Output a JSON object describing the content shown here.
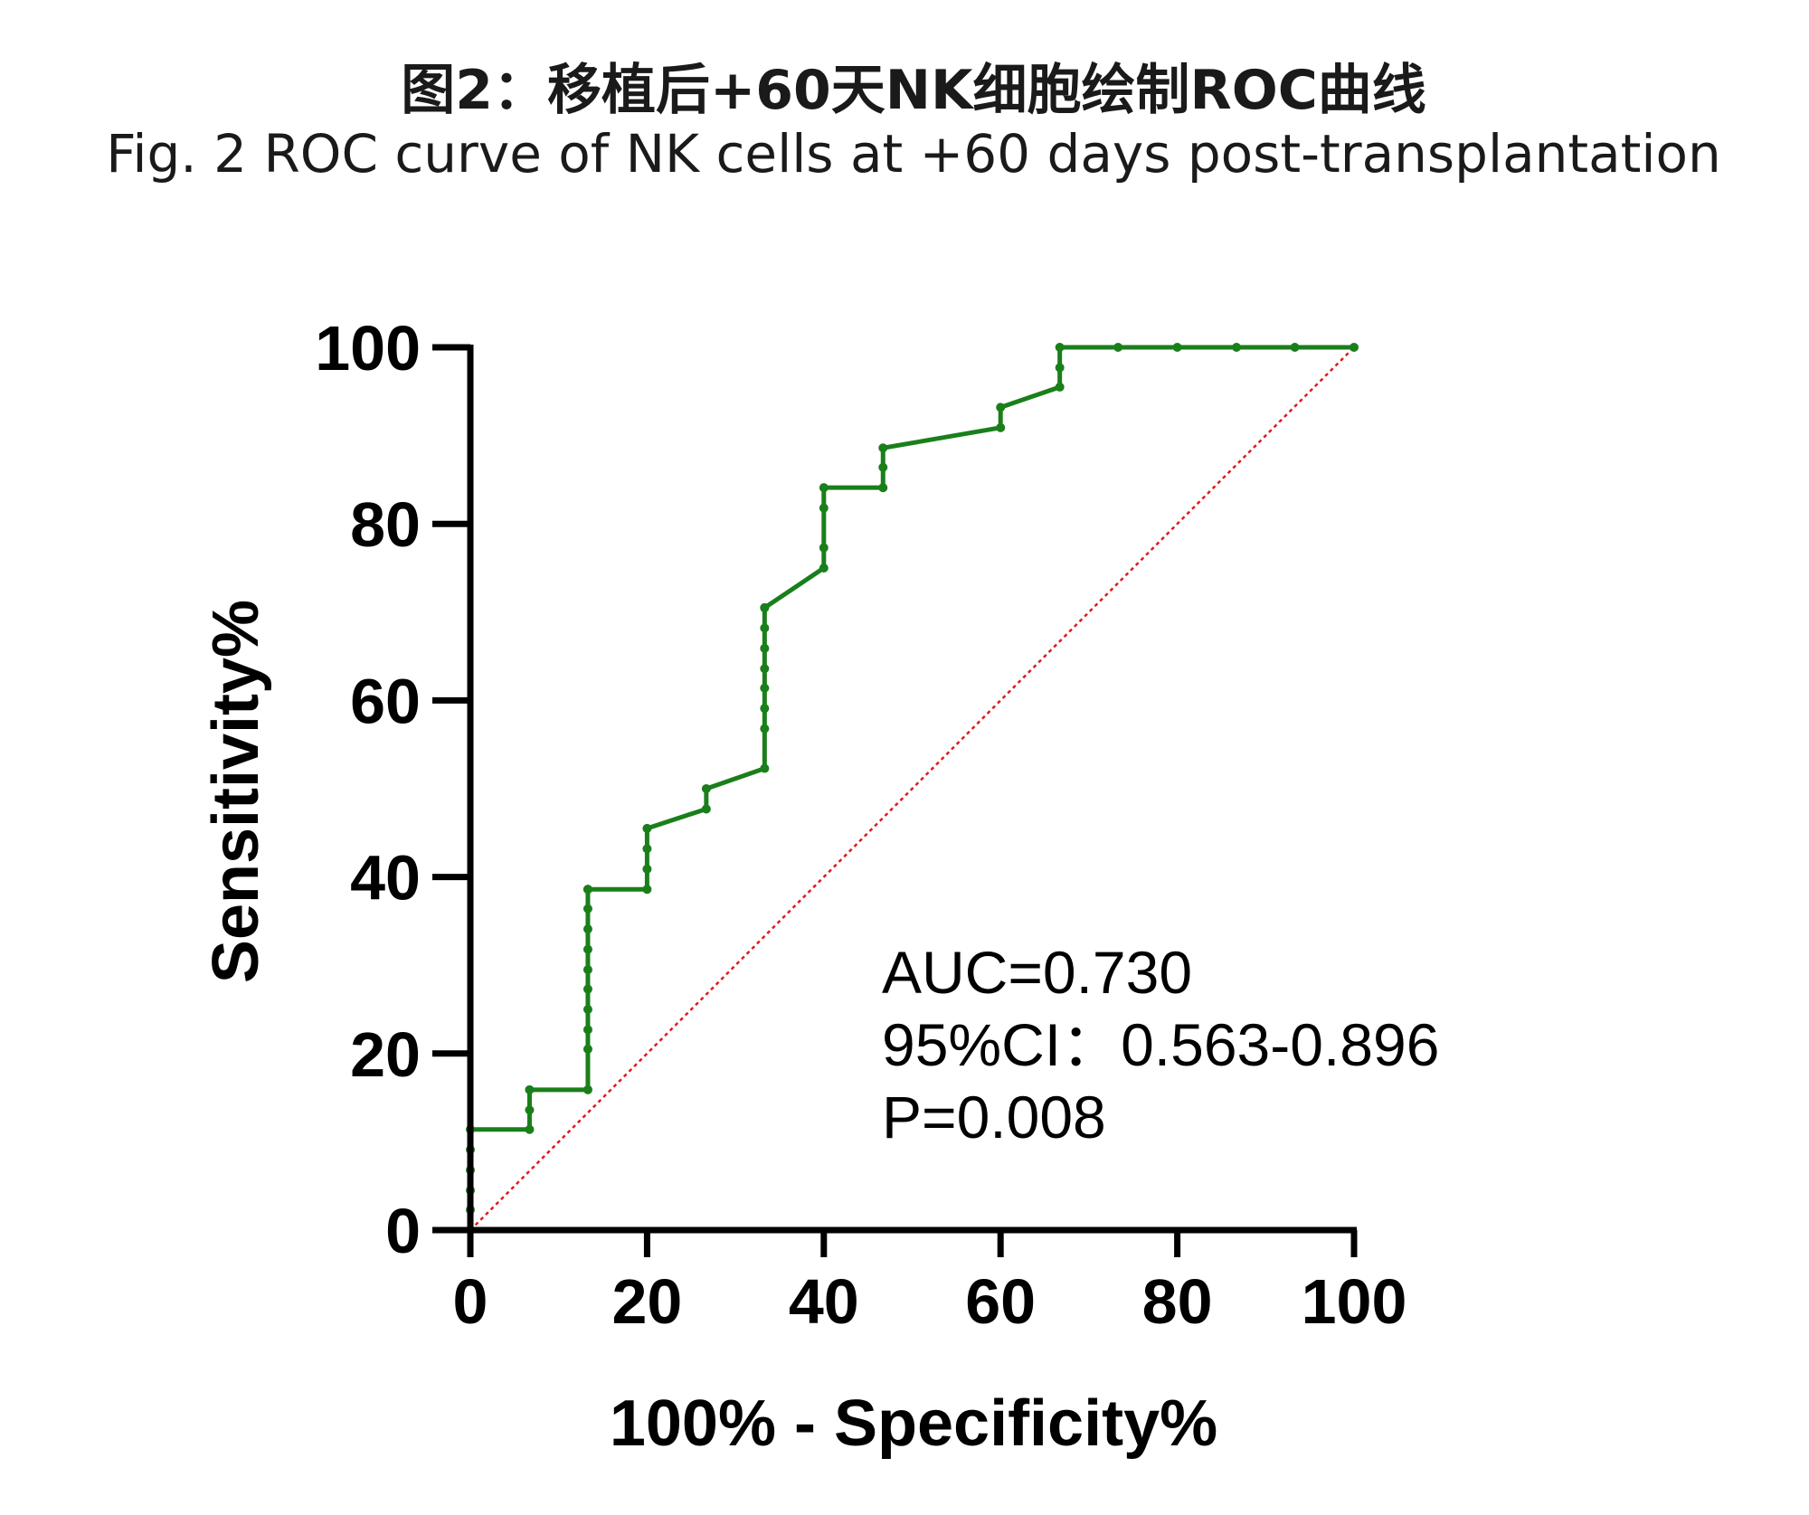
{
  "chart_data": {
    "type": "line",
    "title": "图2：移植后+60天NK细胞绘制ROC曲线",
    "subtitle": "Fig. 2 ROC curve of NK cells at +60 days post-transplantation",
    "xlabel": "100% - Specificity%",
    "ylabel": "Sensitivity%",
    "xlim": [
      0,
      100
    ],
    "ylim": [
      0,
      100
    ],
    "x_ticks": [
      "0",
      "20",
      "40",
      "60",
      "80",
      "100"
    ],
    "y_ticks": [
      "0",
      "20",
      "40",
      "60",
      "80",
      "100"
    ],
    "x_tick_values": [
      0,
      20,
      40,
      60,
      80,
      100
    ],
    "y_tick_values": [
      0,
      20,
      40,
      60,
      80,
      100
    ],
    "grid": false,
    "series": [
      {
        "style": "line-with-markers",
        "color": "#1a7f1a",
        "x": [
          0,
          0,
          0,
          0,
          0,
          0,
          6.7,
          6.7,
          6.7,
          13.3,
          13.3,
          13.3,
          13.3,
          13.3,
          13.3,
          13.3,
          13.3,
          13.3,
          13.3,
          13.3,
          13.3,
          20,
          20,
          20,
          20,
          26.7,
          26.7,
          33.3,
          33.3,
          33.3,
          33.3,
          33.3,
          33.3,
          33.3,
          33.3,
          33.3,
          40,
          40,
          40,
          40,
          46.7,
          46.7,
          46.7,
          60,
          60,
          66.7,
          66.7,
          66.7,
          73.3,
          80,
          86.7,
          93.3,
          100
        ],
        "y": [
          0,
          2.3,
          4.5,
          6.8,
          9.1,
          11.4,
          11.4,
          13.6,
          15.9,
          15.9,
          20.5,
          22.7,
          25,
          27.3,
          29.5,
          31.8,
          34.1,
          36.4,
          38.6,
          38.6,
          38.6,
          38.6,
          40.9,
          43.2,
          45.5,
          47.7,
          50,
          52.3,
          56.8,
          59.1,
          61.4,
          63.6,
          65.9,
          68.2,
          70.5,
          70.5,
          75,
          77.3,
          81.8,
          84.1,
          84.1,
          86.4,
          88.6,
          90.9,
          93.2,
          95.5,
          97.7,
          100,
          100,
          100,
          100,
          100,
          100
        ]
      },
      {
        "style": "dotted-reference",
        "color": "#e0191c",
        "x": [
          0,
          100
        ],
        "y": [
          0,
          100
        ]
      }
    ],
    "annotations": [
      "AUC=0.730",
      "95%CI：0.563-0.896",
      "P=0.008"
    ]
  }
}
